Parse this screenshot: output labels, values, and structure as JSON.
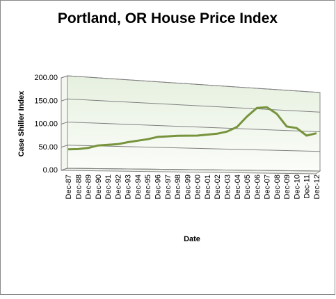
{
  "chart_data": {
    "type": "line",
    "title": "Portland, OR House Price Index",
    "y_label": "Case Shiller Index",
    "x_label": "Date",
    "categories": [
      "Dec-87",
      "Dec-88",
      "Dec-89",
      "Dec-90",
      "Dec-91",
      "Dec-92",
      "Dec-93",
      "Dec-94",
      "Dec-95",
      "Dec-96",
      "Dec-97",
      "Dec-98",
      "Dec-99",
      "Dec-00",
      "Dec-01",
      "Dec-02",
      "Dec-03",
      "Dec-04",
      "Dec-05",
      "Dec-06",
      "Dec-07",
      "Dec-08",
      "Dec-09",
      "Dec-10",
      "Dec-11",
      "Dec-12"
    ],
    "series": [
      {
        "name": "Portland, OR",
        "color": "#77933c",
        "values": [
          41,
          42,
          45,
          51,
          53,
          55,
          60,
          64,
          68,
          74,
          76,
          78,
          79,
          80,
          83,
          86,
          92,
          104,
          130,
          152,
          155,
          140,
          110,
          107,
          89,
          96
        ]
      }
    ],
    "ylim": [
      0,
      200
    ],
    "yticks": [
      {
        "value": 0,
        "label": "0.00"
      },
      {
        "value": 50,
        "label": "50.00"
      },
      {
        "value": 100,
        "label": "100.00"
      },
      {
        "value": 150,
        "label": "150.00"
      },
      {
        "value": 200,
        "label": "200.00"
      }
    ],
    "grid": true
  }
}
